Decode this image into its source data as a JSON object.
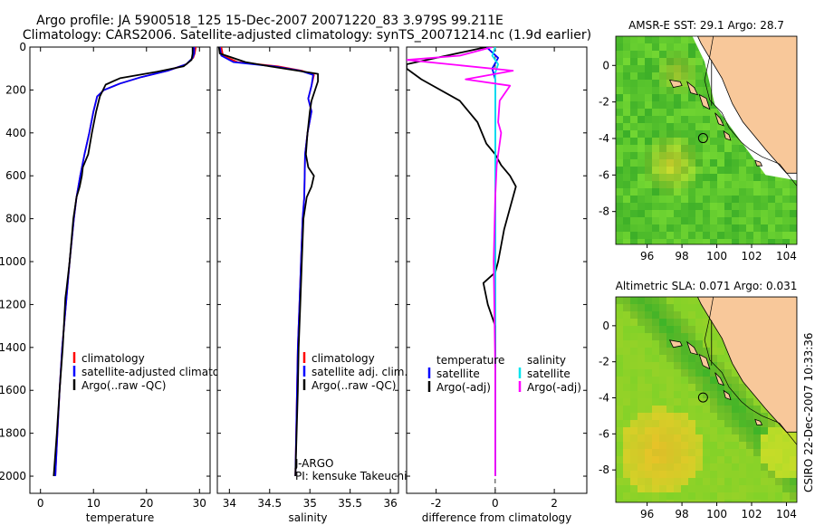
{
  "header": {
    "title_line1": "Argo profile: JA 5900518_125 15-Dec-2007 20071220_83 3.979S 99.211E",
    "title_line2": "Climatology: CARS2006. Satellite-adjusted climatology: synTS_20071214.nc (1.9d earlier)"
  },
  "footer": {
    "stamp": "CSIRO 22-Dec-2007 10:33:36"
  },
  "colors": {
    "climatology": "#ff0000",
    "satellite": "#0000ff",
    "argo": "#000000",
    "sal_satellite": "#00e5ee",
    "sal_argo": "#ff00ff",
    "land": "#f8c89a",
    "sst_field": "#4ec02c",
    "sla_field": "#56c22a"
  },
  "chart_data": [
    {
      "type": "line",
      "xlabel": "temperature",
      "xlim": [
        -2,
        32
      ],
      "ylim": [
        0,
        2080
      ],
      "x_ticks": [
        0,
        10,
        20,
        30
      ],
      "y_ticks": [
        0,
        200,
        400,
        600,
        800,
        1000,
        1200,
        1400,
        1600,
        1800,
        2000
      ],
      "y_reversed": true,
      "legend": {
        "placement": "bottom-right",
        "entries": [
          "climatology",
          "satellite-adjusted climatology",
          "Argo(..raw -QC)"
        ]
      },
      "series": [
        {
          "name": "climatology",
          "color": "climatology",
          "x": [
            29.3,
            29.1,
            28.8,
            27.5,
            24,
            19,
            15,
            12,
            10.7,
            10,
            9.2,
            8.3,
            7.5,
            6.8,
            6.3,
            5.5,
            4.8,
            4.1,
            3.6,
            3.2,
            2.8
          ],
          "y": [
            0,
            30,
            50,
            80,
            110,
            140,
            170,
            200,
            230,
            300,
            400,
            500,
            600,
            700,
            800,
            1000,
            1200,
            1400,
            1600,
            1800,
            2000
          ]
        },
        {
          "name": "satellite-adjusted climatology",
          "color": "satellite",
          "x": [
            29,
            29,
            28.7,
            27.5,
            24,
            19,
            15,
            12,
            10.7,
            10,
            9.2,
            8.3,
            7.5,
            6.8,
            6.3,
            5.5,
            4.8,
            4.1,
            3.6,
            3.2,
            2.8
          ],
          "y": [
            0,
            30,
            50,
            80,
            110,
            140,
            170,
            200,
            230,
            300,
            400,
            500,
            600,
            700,
            800,
            1000,
            1200,
            1400,
            1600,
            1800,
            2000
          ]
        },
        {
          "name": "Argo(..raw -QC)",
          "color": "argo",
          "x": [
            28.7,
            28.7,
            28.5,
            27,
            22,
            15,
            12.3,
            11.2,
            10.5,
            9.7,
            9,
            8,
            7.8,
            7.4,
            6.8,
            6.2,
            5.5,
            4.9,
            4.7,
            4.2,
            3.6,
            3.1,
            2.5
          ],
          "y": [
            0,
            30,
            60,
            90,
            115,
            145,
            175,
            230,
            300,
            400,
            500,
            560,
            600,
            650,
            700,
            800,
            1000,
            1130,
            1170,
            1400,
            1600,
            1800,
            2000
          ]
        }
      ]
    },
    {
      "type": "line",
      "xlabel": "salinity",
      "xlim": [
        33.85,
        36.1
      ],
      "ylim": [
        0,
        2080
      ],
      "x_ticks": [
        34,
        34.5,
        35,
        35.5,
        36
      ],
      "y_reversed": true,
      "legend": {
        "placement": "bottom-right",
        "entries": [
          "climatology",
          "satellite adj. clim.",
          "Argo(..raw -QC)"
        ]
      },
      "annotations": [
        "J-ARGO",
        "PI: kensuke Takeuchi"
      ],
      "series": [
        {
          "name": "climatology",
          "color": "climatology",
          "x": [
            33.9,
            33.92,
            34.1,
            34.6,
            34.9,
            35.05,
            35.02,
            34.98,
            35.02,
            34.97,
            34.94,
            34.93,
            34.91,
            34.89,
            34.87,
            34.85,
            34.84,
            34.82
          ],
          "y": [
            0,
            40,
            70,
            90,
            110,
            130,
            180,
            240,
            300,
            400,
            500,
            700,
            800,
            1000,
            1200,
            1400,
            1600,
            2000
          ]
        },
        {
          "name": "satellite adj. clim.",
          "color": "satellite",
          "x": [
            33.88,
            33.9,
            34.05,
            34.55,
            34.88,
            35.04,
            35.02,
            34.98,
            35.02,
            34.97,
            34.94,
            34.93,
            34.91,
            34.89,
            34.87,
            34.85,
            34.84,
            34.82
          ],
          "y": [
            0,
            40,
            70,
            90,
            110,
            130,
            180,
            240,
            300,
            400,
            500,
            700,
            800,
            1000,
            1200,
            1400,
            1600,
            2000
          ]
        },
        {
          "name": "Argo(..raw -QC)",
          "color": "argo",
          "x": [
            33.87,
            33.88,
            34.2,
            34.5,
            34.85,
            35.1,
            35.1,
            35.02,
            35,
            34.97,
            34.95,
            34.98,
            35.05,
            35.02,
            34.96,
            34.92,
            34.9,
            34.88,
            34.86,
            34.85,
            34.82
          ],
          "y": [
            0,
            30,
            70,
            90,
            110,
            125,
            160,
            250,
            300,
            400,
            500,
            560,
            600,
            650,
            700,
            800,
            1000,
            1200,
            1400,
            1600,
            2000
          ]
        }
      ]
    },
    {
      "type": "line",
      "xlabel": "difference from climatology",
      "xlim": [
        -3,
        3.1
      ],
      "ylim": [
        0,
        2080
      ],
      "x_ticks": [
        -2,
        0,
        2
      ],
      "y_reversed": true,
      "legend": {
        "placement": "bottom",
        "entries": [
          "temperature",
          "satellite",
          "Argo(-adj)",
          "salinity",
          "satellite",
          "Argo(-adj)"
        ]
      },
      "series": [
        {
          "name": "satellite",
          "color": "satellite",
          "x": [
            -0.3,
            0.1,
            -0.1,
            0,
            0,
            0,
            0,
            0,
            0
          ],
          "y": [
            0,
            50,
            100,
            150,
            200,
            500,
            1000,
            1500,
            2000
          ]
        },
        {
          "name": "Argo(-adj)",
          "color": "argo",
          "x": [
            -0.3,
            -3,
            -3,
            -2.5,
            -1.2,
            -0.6,
            -0.3,
            0,
            0.2,
            0.5,
            0.7,
            0.5,
            0.3,
            0.1,
            0,
            -0.4,
            -0.25,
            0,
            0,
            0
          ],
          "y": [
            0,
            80,
            100,
            150,
            250,
            350,
            450,
            500,
            550,
            600,
            650,
            750,
            850,
            1000,
            1050,
            1100,
            1200,
            1300,
            1600,
            2000
          ]
        },
        {
          "name": "satellite",
          "color": "sal_satellite",
          "x": [
            0,
            -0.1,
            0.1,
            0,
            0,
            0,
            0,
            0
          ],
          "y": [
            0,
            40,
            80,
            120,
            300,
            1000,
            1500,
            2000
          ]
        },
        {
          "name": "Argo(-adj)",
          "color": "sal_argo",
          "x": [
            -0.1,
            -1.2,
            -3,
            0.6,
            -1,
            0.5,
            0.15,
            0.1,
            0.2,
            0.05,
            0,
            -0.05,
            0,
            0
          ],
          "y": [
            0,
            40,
            60,
            110,
            150,
            180,
            250,
            350,
            400,
            550,
            700,
            1000,
            1500,
            2000
          ]
        }
      ]
    },
    {
      "type": "heatmap",
      "title": "AMSR-E SST: 29.1 Argo: 28.7",
      "xlim": [
        94.2,
        104.6
      ],
      "ylim": [
        -9.8,
        1.6
      ],
      "x_ticks": [
        96,
        98,
        100,
        102,
        104
      ],
      "y_ticks": [
        -8,
        -6,
        -4,
        -2,
        0
      ],
      "argo_position": [
        99.211,
        -3.979
      ]
    },
    {
      "type": "heatmap",
      "title": "Altimetric SLA: 0.071 Argo: 0.031",
      "xlim": [
        94.2,
        104.6
      ],
      "ylim": [
        -9.8,
        1.6
      ],
      "x_ticks": [
        96,
        98,
        100,
        102,
        104
      ],
      "y_ticks": [
        -8,
        -6,
        -4,
        -2,
        0
      ],
      "argo_position": [
        99.211,
        -3.979
      ]
    }
  ]
}
